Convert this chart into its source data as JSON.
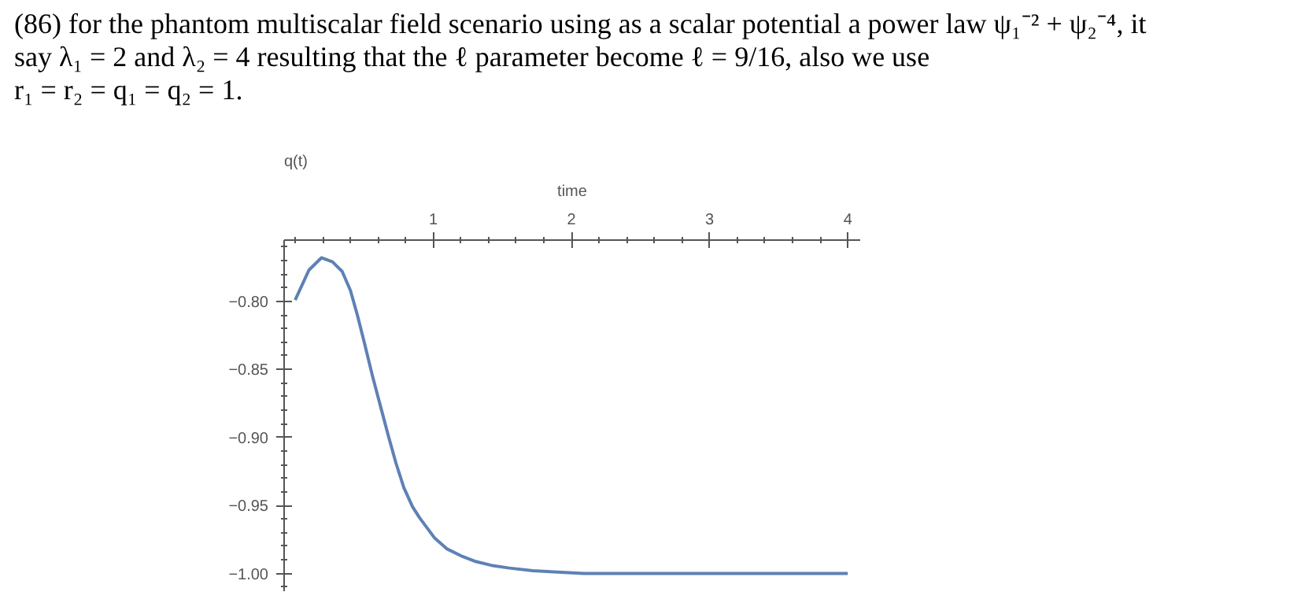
{
  "chart_data": {
    "type": "line",
    "annotations": [
      "(86) for the phantom multiscalar field scenario using as a scalar potential a power law ψ₁⁻² + ψ₂⁻⁴, it",
      "say λ₁ = 2 and λ₂ = 4 resulting that the ℓ parameter become ℓ = 9/16, also we use",
      "r₁ = r₂ = q₁ = q₂ = 1."
    ],
    "xlabel": "time",
    "ylabel": "q(t)",
    "x": [
      0,
      0.1,
      0.19,
      0.27,
      0.34,
      0.4,
      0.45,
      0.5,
      0.56,
      0.62,
      0.675,
      0.73,
      0.787,
      0.85,
      0.9,
      1.01,
      1.1,
      1.2,
      1.3,
      1.42,
      1.55,
      1.72,
      1.9,
      2.09,
      2.5,
      3.0,
      3.5,
      4.0
    ],
    "series": [
      {
        "color": "#5e81b5",
        "values": [
          -0.799,
          -0.777,
          -0.768,
          -0.771,
          -0.778,
          -0.792,
          -0.81,
          -0.83,
          -0.855,
          -0.878,
          -0.899,
          -0.919,
          -0.937,
          -0.951,
          -0.959,
          -0.974,
          -0.982,
          -0.987,
          -0.991,
          -0.994,
          -0.996,
          -0.998,
          -0.999,
          -1.0,
          -1.0,
          -1.0,
          -1.0,
          -1.0
        ]
      }
    ],
    "xlim": [
      -0.08,
      4.09
    ],
    "ylim": [
      -1.013,
      -0.755
    ],
    "xticks": [
      1,
      2,
      3,
      4
    ],
    "yticks": [
      {
        "value": -0.8,
        "label": "−0.80"
      },
      {
        "value": -0.85,
        "label": "−0.85"
      },
      {
        "value": -0.9,
        "label": "−0.90"
      },
      {
        "value": -0.95,
        "label": "−0.95"
      },
      {
        "value": -1.0,
        "label": "−1.00"
      }
    ],
    "grid": false,
    "marker": "none",
    "line_style": "solid"
  }
}
